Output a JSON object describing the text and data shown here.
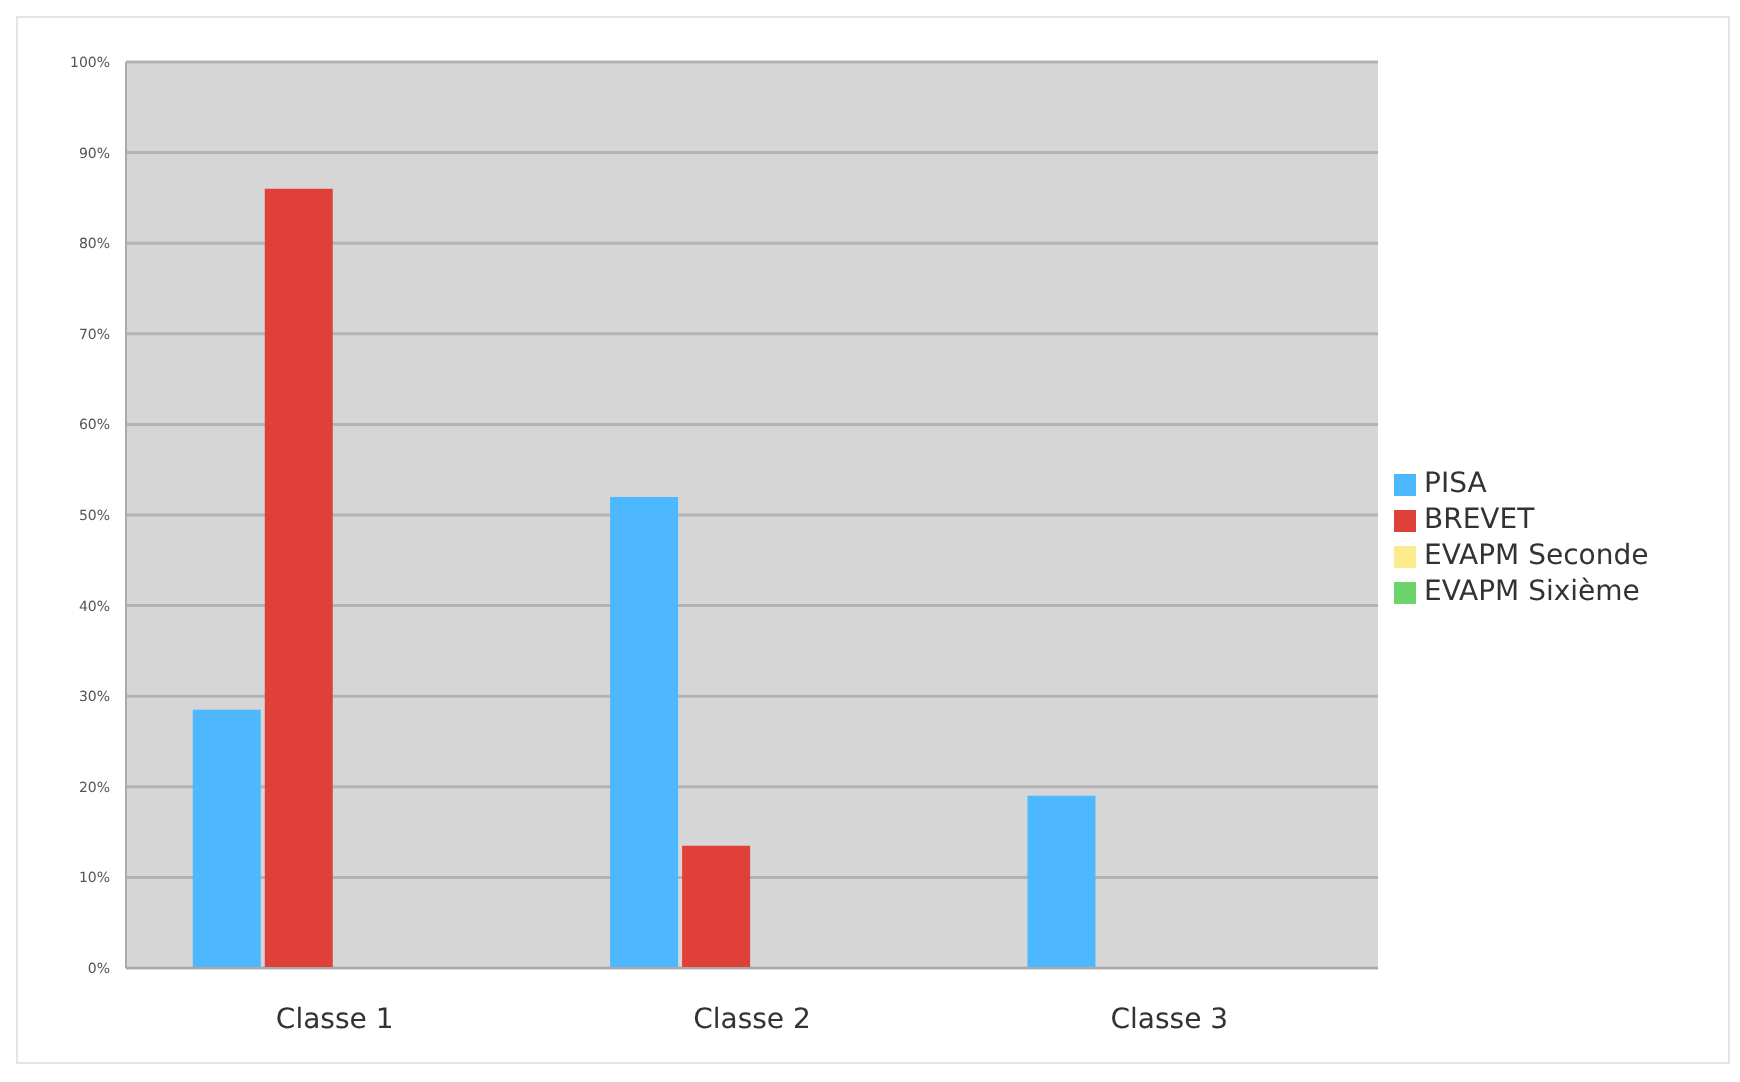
{
  "chart_data": {
    "type": "bar",
    "categories": [
      "Classe 1",
      "Classe 2",
      "Classe 3"
    ],
    "series": [
      {
        "name": "PISA",
        "color": "#4db8ff",
        "values": [
          28.5,
          52,
          19
        ]
      },
      {
        "name": "BREVET",
        "color": "#e0403a",
        "values": [
          86,
          13.5,
          null
        ]
      },
      {
        "name": "EVAPM Seconde",
        "color": "#fbeb8c",
        "values": [
          null,
          null,
          null
        ]
      },
      {
        "name": "EVAPM Sixième",
        "color": "#6dd36d",
        "values": [
          null,
          null,
          null
        ]
      }
    ],
    "ylim": [
      0,
      100
    ],
    "yticks": [
      {
        "value": 0,
        "label": "0%"
      },
      {
        "value": 10,
        "label": "10%"
      },
      {
        "value": 20,
        "label": "20%"
      },
      {
        "value": 30,
        "label": "30%"
      },
      {
        "value": 40,
        "label": "40%"
      },
      {
        "value": 50,
        "label": "50%"
      },
      {
        "value": 60,
        "label": "60%"
      },
      {
        "value": 70,
        "label": "70%"
      },
      {
        "value": 80,
        "label": "80%"
      },
      {
        "value": 90,
        "label": "90%"
      },
      {
        "value": 100,
        "label": "100%"
      }
    ],
    "grid": "y",
    "legend": "right"
  }
}
